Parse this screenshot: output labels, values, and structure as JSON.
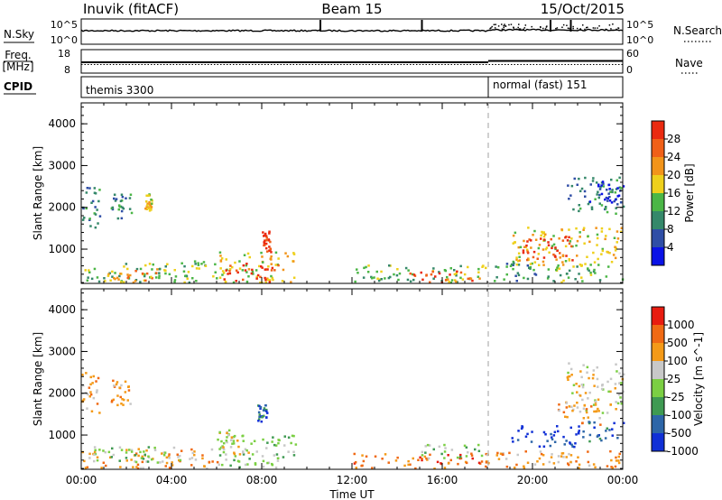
{
  "header": {
    "radar": "Inuvik (fitACF)",
    "beam": "Beam 15",
    "date": "15/Oct/2015"
  },
  "side_labels": {
    "nsky": "N.Sky",
    "freq_line1": "Freq.",
    "freq_line2": "[MHz]",
    "cpid": "CPID",
    "nsearch": "N.Search",
    "nave": "Nave"
  },
  "nsky_axis": {
    "top": "10^5",
    "bottom": "10^0"
  },
  "freq_axis": {
    "top": "18",
    "bottom": "8"
  },
  "nave_axis": {
    "top": "60",
    "bottom": "0"
  },
  "cpid_segments": [
    {
      "label": "themis 3300",
      "start_hour": 0
    },
    {
      "label": "normal (fast) 151",
      "start_hour": 18
    }
  ],
  "colors": {
    "power": [
      "#0a12e6",
      "#2f4ea6",
      "#35886a",
      "#4bb646",
      "#eed01c",
      "#f2941a",
      "#f06018",
      "#ea2a10"
    ],
    "velocity": [
      "#e81c10",
      "#f06a14",
      "#f49a18",
      "#c8c8c8",
      "#7bcf43",
      "#3f9a52",
      "#2d66a8",
      "#1030d6"
    ]
  },
  "chart_data": [
    {
      "type": "heatmap",
      "title": "Power",
      "ylabel": "Slant Range [km]",
      "xlabel": "Time UT",
      "xlim": [
        "00:00",
        "00:00"
      ],
      "x_ticks": [
        "00:00",
        "04:00",
        "08:00",
        "12:00",
        "16:00",
        "20:00",
        "00:00"
      ],
      "ylim": [
        180,
        4500
      ],
      "y_ticks": [
        1000,
        2000,
        3000,
        4000
      ],
      "colorbar_label": "Power [dB]",
      "colorbar_ticks": [
        "4",
        "8",
        "12",
        "16",
        "20",
        "24",
        "28"
      ],
      "regions": [
        {
          "t0": 0.0,
          "t1": 6.0,
          "r0": 180,
          "r1": 700,
          "level": 3
        },
        {
          "t0": 1.0,
          "t1": 3.5,
          "r0": 180,
          "r1": 500,
          "level": 5
        },
        {
          "t0": 6.0,
          "t1": 9.5,
          "r0": 180,
          "r1": 950,
          "level": 4
        },
        {
          "t0": 6.2,
          "t1": 8.8,
          "r0": 200,
          "r1": 650,
          "level": 7
        },
        {
          "t0": 0.0,
          "t1": 0.8,
          "r0": 1500,
          "r1": 2500,
          "level": 2
        },
        {
          "t0": 1.3,
          "t1": 2.2,
          "r0": 1700,
          "r1": 2300,
          "level": 2
        },
        {
          "t0": 2.8,
          "t1": 3.1,
          "r0": 1900,
          "r1": 2300,
          "level": 4
        },
        {
          "t0": 8.0,
          "t1": 8.4,
          "r0": 900,
          "r1": 1400,
          "level": 7
        },
        {
          "t0": 12.0,
          "t1": 18.0,
          "r0": 180,
          "r1": 600,
          "level": 3
        },
        {
          "t0": 14.5,
          "t1": 17.8,
          "r0": 180,
          "r1": 450,
          "level": 6
        },
        {
          "t0": 18.0,
          "t1": 20.2,
          "r0": 180,
          "r1": 700,
          "level": 2
        },
        {
          "t0": 19.0,
          "t1": 24.0,
          "r0": 600,
          "r1": 1500,
          "level": 4
        },
        {
          "t0": 19.5,
          "t1": 21.8,
          "r0": 700,
          "r1": 1300,
          "level": 7
        },
        {
          "t0": 20.5,
          "t1": 24.0,
          "r0": 180,
          "r1": 600,
          "level": 3
        },
        {
          "t0": 21.5,
          "t1": 24.0,
          "r0": 1800,
          "r1": 2700,
          "level": 2
        },
        {
          "t0": 22.5,
          "t1": 24.0,
          "r0": 2100,
          "r1": 2600,
          "level": 0
        }
      ]
    },
    {
      "type": "heatmap",
      "title": "Velocity",
      "ylabel": "Slant Range [km]",
      "xlabel": "Time UT",
      "xlim": [
        "00:00",
        "00:00"
      ],
      "x_ticks": [
        "00:00",
        "04:00",
        "08:00",
        "12:00",
        "16:00",
        "20:00",
        "00:00"
      ],
      "ylim": [
        180,
        4500
      ],
      "y_ticks": [
        1000,
        2000,
        3000,
        4000
      ],
      "colorbar_label": "Velocity [m s^-1]",
      "colorbar_ticks": [
        "1000",
        "500",
        "100",
        "25",
        "-25",
        "-100",
        "-500",
        "-1000"
      ],
      "regions": [
        {
          "t0": 0.0,
          "t1": 6.0,
          "r0": 180,
          "r1": 650,
          "level": 2
        },
        {
          "t0": 0.5,
          "t1": 4.5,
          "r0": 300,
          "r1": 700,
          "level": 4
        },
        {
          "t0": 6.0,
          "t1": 9.5,
          "r0": 180,
          "r1": 1000,
          "level": 4
        },
        {
          "t0": 6.0,
          "t1": 7.5,
          "r0": 500,
          "r1": 1100,
          "level": 3
        },
        {
          "t0": 0.0,
          "t1": 0.8,
          "r0": 1500,
          "r1": 2500,
          "level": 2
        },
        {
          "t0": 1.3,
          "t1": 2.2,
          "r0": 1700,
          "r1": 2300,
          "level": 2
        },
        {
          "t0": 7.8,
          "t1": 8.2,
          "r0": 1300,
          "r1": 1700,
          "level": 6
        },
        {
          "t0": 12.0,
          "t1": 18.0,
          "r0": 180,
          "r1": 550,
          "level": 1
        },
        {
          "t0": 15.0,
          "t1": 18.0,
          "r0": 400,
          "r1": 750,
          "level": 4
        },
        {
          "t0": 18.0,
          "t1": 24.0,
          "r0": 180,
          "r1": 600,
          "level": 2
        },
        {
          "t0": 19.0,
          "t1": 22.0,
          "r0": 700,
          "r1": 1200,
          "level": 7
        },
        {
          "t0": 22.0,
          "t1": 24.0,
          "r0": 800,
          "r1": 1300,
          "level": 6
        },
        {
          "t0": 21.5,
          "t1": 24.0,
          "r0": 1500,
          "r1": 2700,
          "level": 3
        },
        {
          "t0": 21.0,
          "t1": 23.0,
          "r0": 1200,
          "r1": 1800,
          "level": 2
        }
      ]
    }
  ]
}
